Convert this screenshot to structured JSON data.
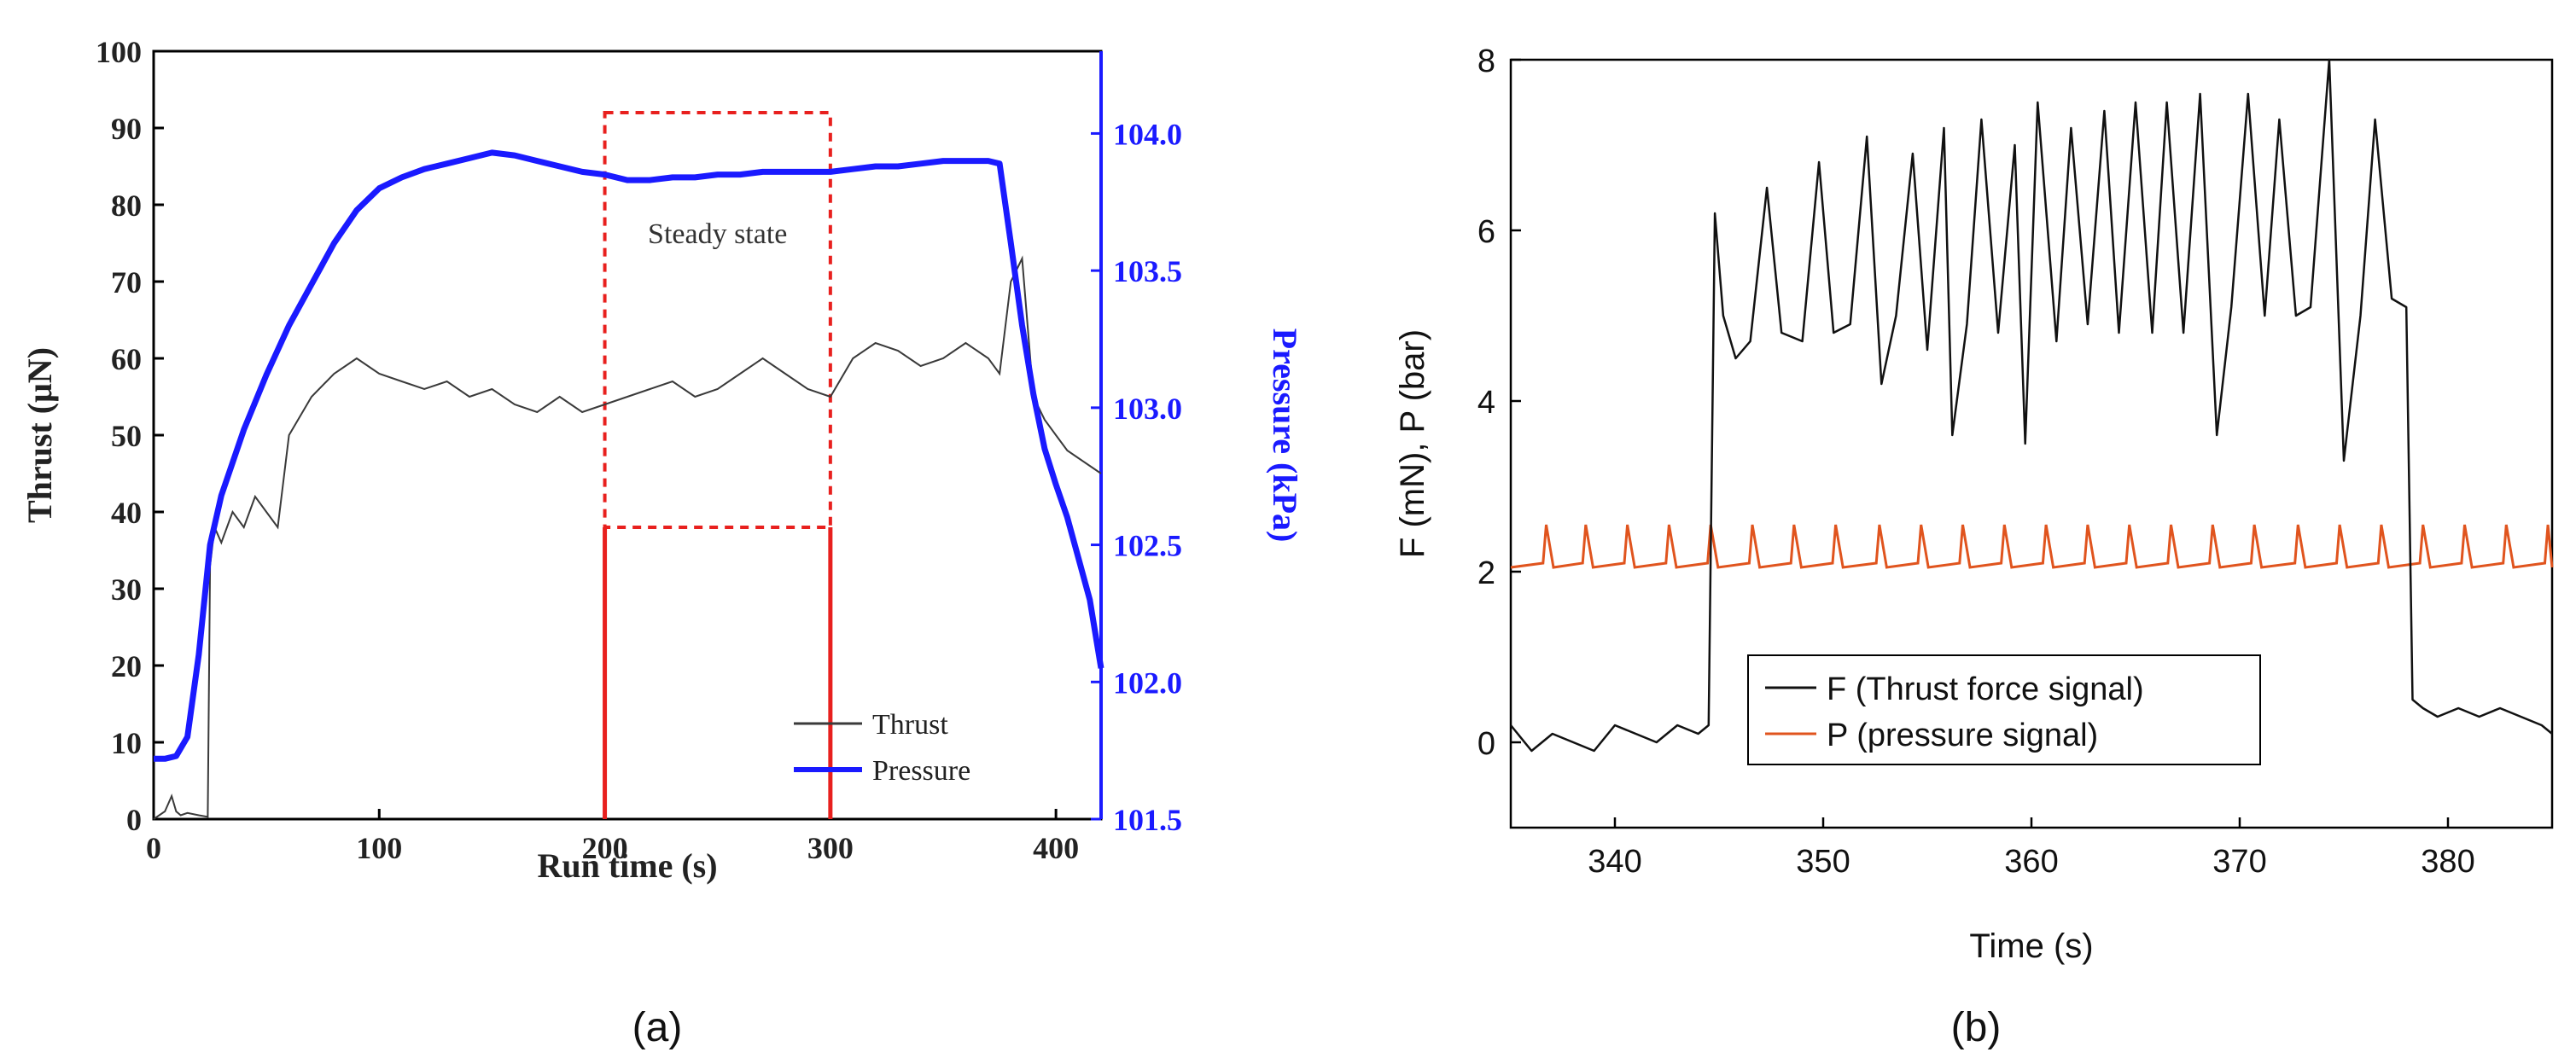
{
  "panels": [
    {
      "label": "(a)"
    },
    {
      "label": "(b)"
    }
  ],
  "colors": {
    "thrust": "#3a3a3a",
    "pressure_a": "#1a1aff",
    "right_axis_a": "#1a1aff",
    "highlight": "#e8201e",
    "force": "#111111",
    "pressure_b": "#e0541e"
  },
  "chart_data": [
    {
      "type": "line",
      "panel": "(a)",
      "xlabel": "Run time (s)",
      "ylabel": "Thrust (μN)",
      "y2label": "Pressure (kPa)",
      "xlim": [
        0,
        420
      ],
      "ylim": [
        0,
        100
      ],
      "y2lim": [
        101.5,
        104.3
      ],
      "xticks": [
        0,
        100,
        200,
        300,
        400
      ],
      "yticks": [
        0,
        10,
        20,
        30,
        40,
        50,
        60,
        70,
        80,
        90,
        100
      ],
      "y2ticks": [
        "101.5",
        "102.0",
        "102.5",
        "103.0",
        "103.5",
        "104.0"
      ],
      "legend": {
        "position": "bottom-right",
        "entries": [
          "Thrust",
          "Pressure"
        ]
      },
      "annotation": {
        "text": "Steady state",
        "x_range": [
          200,
          300
        ],
        "box_y_range": [
          38,
          92
        ],
        "line_y_range": [
          0,
          38
        ]
      },
      "series": [
        {
          "name": "Thrust",
          "axis": "left",
          "x": [
            0,
            5,
            8,
            10,
            12,
            15,
            20,
            24,
            25,
            27,
            30,
            35,
            40,
            45,
            50,
            55,
            60,
            70,
            80,
            90,
            100,
            110,
            120,
            130,
            140,
            150,
            160,
            170,
            180,
            190,
            200,
            210,
            220,
            230,
            240,
            250,
            260,
            270,
            280,
            290,
            300,
            310,
            320,
            330,
            340,
            350,
            360,
            370,
            375,
            380,
            385,
            390,
            395,
            400,
            405,
            410,
            415,
            420
          ],
          "y": [
            0,
            1,
            3,
            1,
            0.5,
            0.8,
            0.5,
            0.3,
            33,
            38,
            36,
            40,
            38,
            42,
            40,
            38,
            50,
            55,
            58,
            60,
            58,
            57,
            56,
            57,
            55,
            56,
            54,
            53,
            55,
            53,
            54,
            55,
            56,
            57,
            55,
            56,
            58,
            60,
            58,
            56,
            55,
            60,
            62,
            61,
            59,
            60,
            62,
            60,
            58,
            70,
            73,
            55,
            52,
            50,
            48,
            47,
            46,
            45
          ]
        },
        {
          "name": "Pressure",
          "axis": "right",
          "x": [
            0,
            5,
            10,
            15,
            20,
            25,
            30,
            40,
            50,
            60,
            70,
            80,
            90,
            100,
            110,
            120,
            130,
            140,
            150,
            160,
            170,
            180,
            190,
            200,
            210,
            220,
            230,
            240,
            250,
            260,
            270,
            280,
            290,
            300,
            310,
            320,
            330,
            340,
            350,
            360,
            370,
            375,
            380,
            385,
            390,
            395,
            400,
            405,
            410,
            415,
            420
          ],
          "y": [
            101.72,
            101.72,
            101.73,
            101.8,
            102.1,
            102.5,
            102.68,
            102.92,
            103.12,
            103.3,
            103.45,
            103.6,
            103.72,
            103.8,
            103.84,
            103.87,
            103.89,
            103.91,
            103.93,
            103.92,
            103.9,
            103.88,
            103.86,
            103.85,
            103.83,
            103.83,
            103.84,
            103.84,
            103.85,
            103.85,
            103.86,
            103.86,
            103.86,
            103.86,
            103.87,
            103.88,
            103.88,
            103.89,
            103.9,
            103.9,
            103.9,
            103.89,
            103.6,
            103.3,
            103.05,
            102.85,
            102.72,
            102.6,
            102.45,
            102.3,
            102.05
          ]
        }
      ]
    },
    {
      "type": "line",
      "panel": "(b)",
      "xlabel": "Time (s)",
      "ylabel": "F (mN), P (bar)",
      "xlim": [
        335,
        385
      ],
      "ylim": [
        -1,
        8
      ],
      "xticks": [
        340,
        350,
        360,
        370,
        380
      ],
      "yticks": [
        0,
        2,
        4,
        6,
        8
      ],
      "legend": {
        "position": "bottom-center",
        "entries": [
          "F (Thrust force signal)",
          "P (pressure signal)"
        ]
      },
      "series": [
        {
          "name": "F (Thrust force signal)",
          "x": [
            335,
            336,
            337,
            338,
            339,
            340,
            341,
            342,
            343,
            344,
            344.5,
            344.8,
            345.2,
            345.8,
            346.5,
            347.3,
            348,
            349,
            349.8,
            350.5,
            351.3,
            352.1,
            352.8,
            353.5,
            354.3,
            355,
            355.8,
            356.2,
            356.9,
            357.6,
            358.4,
            359.2,
            359.7,
            360.3,
            361.2,
            361.9,
            362.7,
            363.5,
            364.2,
            365,
            365.8,
            366.5,
            367.3,
            368.1,
            368.9,
            369.6,
            370.4,
            371.2,
            371.9,
            372.7,
            373.4,
            374.3,
            375,
            375.8,
            376.5,
            377.3,
            378,
            378.3,
            378.8,
            379.5,
            380.5,
            381.5,
            382.5,
            383.5,
            384.5,
            385
          ],
          "y": [
            0.2,
            -0.1,
            0.1,
            0.0,
            -0.1,
            0.2,
            0.1,
            0.0,
            0.2,
            0.1,
            0.2,
            6.2,
            5.0,
            4.5,
            4.7,
            6.5,
            4.8,
            4.7,
            6.8,
            4.8,
            4.9,
            7.1,
            4.2,
            5.0,
            6.9,
            4.6,
            7.2,
            3.6,
            4.9,
            7.3,
            4.8,
            7.0,
            3.5,
            7.5,
            4.7,
            7.2,
            4.9,
            7.4,
            4.8,
            7.5,
            4.8,
            7.5,
            4.8,
            7.6,
            3.6,
            5.1,
            7.6,
            5.0,
            7.3,
            5.0,
            5.1,
            8.0,
            3.3,
            5.0,
            7.3,
            5.2,
            5.1,
            0.5,
            0.4,
            0.3,
            0.4,
            0.3,
            0.4,
            0.3,
            0.2,
            0.1
          ]
        },
        {
          "name": "P (pressure signal)",
          "base": 2.05,
          "peak": 2.55,
          "x_peaks": [
            336.7,
            338.6,
            340.6,
            342.6,
            344.6,
            346.6,
            348.6,
            350.6,
            352.7,
            354.7,
            356.7,
            358.7,
            360.7,
            362.7,
            364.7,
            366.7,
            368.7,
            370.7,
            372.8,
            374.8,
            376.8,
            378.8,
            380.8,
            382.8,
            384.8
          ]
        }
      ]
    }
  ]
}
